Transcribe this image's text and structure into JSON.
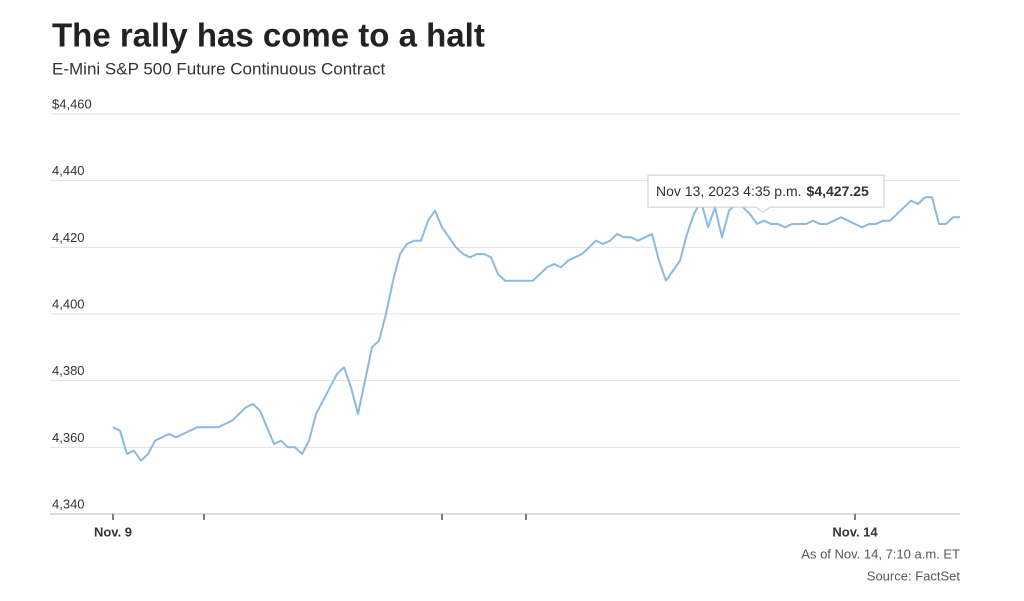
{
  "chart_data": {
    "type": "line",
    "title": "The rally has come to a halt",
    "subtitle": "E-Mini S&P 500 Future Continuous Contract",
    "footnote": "As of Nov. 14, 7:10 a.m. ET",
    "source": "Source: FactSet",
    "color": "#8cb9e2",
    "grid": true,
    "xlim": [
      0,
      121
    ],
    "xticks": [
      {
        "value": 0,
        "label": "Nov. 9"
      },
      13,
      47,
      59,
      {
        "value": 106,
        "label": "Nov. 14"
      }
    ],
    "ylim": [
      4340,
      4460
    ],
    "yticks": [
      {
        "value": 4340,
        "label": "4,340"
      },
      {
        "value": 4360,
        "label": "4,360"
      },
      {
        "value": 4380,
        "label": "4,380"
      },
      {
        "value": 4400,
        "label": "4,400"
      },
      {
        "value": 4420,
        "label": "4,420"
      },
      {
        "value": 4440,
        "label": "4,440"
      },
      {
        "value": 4460,
        "label": "$4,460"
      }
    ],
    "values": [
      4366,
      4365,
      4358,
      4359,
      4356,
      4358,
      4362,
      4363,
      4364,
      4363,
      4364,
      4365,
      4366,
      4366,
      4366,
      4366,
      4367,
      4368,
      4370,
      4372,
      4373,
      4371,
      4366,
      4361,
      4362,
      4360,
      4360,
      4358,
      4362,
      4370,
      4374,
      4378,
      4382,
      4384,
      4378,
      4370,
      4380,
      4390,
      4392,
      4400,
      4410,
      4418,
      4421,
      4422,
      4422,
      4428,
      4431,
      4426,
      4423,
      4420,
      4418,
      4417,
      4418,
      4418,
      4417,
      4412,
      4410,
      4410,
      4410,
      4410,
      4410,
      4412,
      4414,
      4415,
      4414,
      4416,
      4417,
      4418,
      4420,
      4422,
      4421,
      4422,
      4424,
      4423,
      4423,
      4422,
      4423,
      4424,
      4416,
      4410,
      4413,
      4416,
      4424,
      4430,
      4434,
      4426,
      4432,
      4423,
      4431,
      4433,
      4432,
      4430,
      4427,
      4428,
      4427,
      4427,
      4426,
      4427,
      4427,
      4427,
      4428,
      4427,
      4427,
      4428,
      4429,
      4428,
      4427,
      4426,
      4427,
      4427,
      4428,
      4428,
      4430,
      4432,
      4434,
      4433,
      4435,
      4435,
      4427,
      4427,
      4429,
      4429
    ],
    "tooltip": {
      "date": "Nov 13, 2023 4:35 p.m.",
      "value": 4427.25,
      "value_label": "$4,427.25"
    }
  }
}
